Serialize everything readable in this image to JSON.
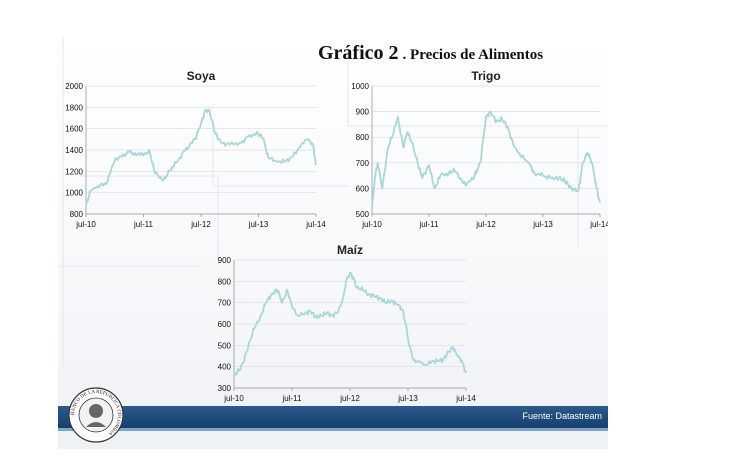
{
  "title": {
    "main": "Gráfico 2",
    "sub": ". Precios de Alimentos"
  },
  "source": "Fuente: Datastream",
  "logo_text": "BANCO DE LA REPUBLICA COLOMBIA",
  "colors": {
    "series": "#a9d6da",
    "footer": "#1d4a7c",
    "grid": "#d9dde2"
  },
  "chart_data": [
    {
      "type": "line",
      "title": "Soya",
      "xlabel": "",
      "ylabel": "",
      "x_ticks": [
        "jul-10",
        "jul-11",
        "jul-12",
        "jul-13",
        "jul-14"
      ],
      "x_range": [
        2010.5,
        2014.5
      ],
      "ylim": [
        800,
        2000
      ],
      "y_ticks": [
        800,
        1000,
        1200,
        1400,
        1600,
        1800,
        2000
      ],
      "grid": "horizontal",
      "series": [
        {
          "values": [
            [
              2010.5,
              880
            ],
            [
              2010.58,
              1020
            ],
            [
              2010.7,
              1060
            ],
            [
              2010.85,
              1080
            ],
            [
              2011.0,
              1300
            ],
            [
              2011.1,
              1340
            ],
            [
              2011.25,
              1380
            ],
            [
              2011.4,
              1360
            ],
            [
              2011.55,
              1370
            ],
            [
              2011.6,
              1400
            ],
            [
              2011.7,
              1180
            ],
            [
              2011.85,
              1120
            ],
            [
              2011.95,
              1200
            ],
            [
              2012.1,
              1300
            ],
            [
              2012.25,
              1420
            ],
            [
              2012.4,
              1500
            ],
            [
              2012.5,
              1650
            ],
            [
              2012.58,
              1780
            ],
            [
              2012.65,
              1760
            ],
            [
              2012.75,
              1550
            ],
            [
              2012.85,
              1470
            ],
            [
              2013.0,
              1450
            ],
            [
              2013.2,
              1470
            ],
            [
              2013.35,
              1540
            ],
            [
              2013.5,
              1550
            ],
            [
              2013.58,
              1510
            ],
            [
              2013.67,
              1330
            ],
            [
              2013.8,
              1300
            ],
            [
              2013.95,
              1290
            ],
            [
              2014.1,
              1340
            ],
            [
              2014.25,
              1460
            ],
            [
              2014.35,
              1500
            ],
            [
              2014.45,
              1450
            ],
            [
              2014.5,
              1260
            ]
          ]
        }
      ]
    },
    {
      "type": "line",
      "title": "Trigo",
      "xlabel": "",
      "ylabel": "",
      "x_ticks": [
        "jul-10",
        "jul-11",
        "jul-12",
        "jul-13",
        "jul-14"
      ],
      "x_range": [
        2010.5,
        2014.5
      ],
      "ylim": [
        500,
        1000
      ],
      "y_ticks": [
        500,
        600,
        700,
        800,
        900,
        1000
      ],
      "grid": "horizontal",
      "series": [
        {
          "values": [
            [
              2010.5,
              520
            ],
            [
              2010.55,
              640
            ],
            [
              2010.6,
              700
            ],
            [
              2010.68,
              600
            ],
            [
              2010.78,
              760
            ],
            [
              2010.88,
              820
            ],
            [
              2010.95,
              880
            ],
            [
              2011.05,
              760
            ],
            [
              2011.12,
              820
            ],
            [
              2011.2,
              780
            ],
            [
              2011.3,
              700
            ],
            [
              2011.38,
              640
            ],
            [
              2011.5,
              690
            ],
            [
              2011.6,
              600
            ],
            [
              2011.7,
              650
            ],
            [
              2011.85,
              660
            ],
            [
              2011.95,
              670
            ],
            [
              2012.05,
              640
            ],
            [
              2012.15,
              610
            ],
            [
              2012.3,
              650
            ],
            [
              2012.4,
              700
            ],
            [
              2012.5,
              880
            ],
            [
              2012.58,
              900
            ],
            [
              2012.68,
              860
            ],
            [
              2012.78,
              870
            ],
            [
              2012.88,
              840
            ],
            [
              2012.98,
              770
            ],
            [
              2013.1,
              730
            ],
            [
              2013.25,
              700
            ],
            [
              2013.35,
              660
            ],
            [
              2013.5,
              650
            ],
            [
              2013.65,
              640
            ],
            [
              2013.78,
              640
            ],
            [
              2013.88,
              630
            ],
            [
              2014.0,
              600
            ],
            [
              2014.12,
              590
            ],
            [
              2014.2,
              700
            ],
            [
              2014.28,
              740
            ],
            [
              2014.36,
              700
            ],
            [
              2014.44,
              600
            ],
            [
              2014.5,
              545
            ]
          ]
        }
      ]
    },
    {
      "type": "line",
      "title": "Maíz",
      "xlabel": "",
      "ylabel": "",
      "x_ticks": [
        "jul-10",
        "jul-11",
        "jul-12",
        "jul-13",
        "jul-14"
      ],
      "x_range": [
        2010.5,
        2014.5
      ],
      "ylim": [
        300,
        900
      ],
      "y_ticks": [
        300,
        400,
        500,
        600,
        700,
        800,
        900
      ],
      "grid": "horizontal",
      "series": [
        {
          "values": [
            [
              2010.5,
              360
            ],
            [
              2010.58,
              380
            ],
            [
              2010.66,
              420
            ],
            [
              2010.75,
              500
            ],
            [
              2010.85,
              580
            ],
            [
              2010.95,
              630
            ],
            [
              2011.05,
              700
            ],
            [
              2011.15,
              740
            ],
            [
              2011.25,
              760
            ],
            [
              2011.33,
              700
            ],
            [
              2011.42,
              760
            ],
            [
              2011.5,
              680
            ],
            [
              2011.6,
              640
            ],
            [
              2011.72,
              650
            ],
            [
              2011.82,
              660
            ],
            [
              2011.92,
              630
            ],
            [
              2012.0,
              640
            ],
            [
              2012.1,
              650
            ],
            [
              2012.2,
              640
            ],
            [
              2012.3,
              660
            ],
            [
              2012.38,
              720
            ],
            [
              2012.44,
              810
            ],
            [
              2012.5,
              840
            ],
            [
              2012.55,
              820
            ],
            [
              2012.62,
              770
            ],
            [
              2012.72,
              760
            ],
            [
              2012.82,
              740
            ],
            [
              2012.92,
              730
            ],
            [
              2013.02,
              720
            ],
            [
              2013.12,
              700
            ],
            [
              2013.22,
              710
            ],
            [
              2013.32,
              690
            ],
            [
              2013.4,
              670
            ],
            [
              2013.46,
              600
            ],
            [
              2013.52,
              500
            ],
            [
              2013.6,
              430
            ],
            [
              2013.7,
              420
            ],
            [
              2013.8,
              410
            ],
            [
              2013.9,
              420
            ],
            [
              2014.0,
              430
            ],
            [
              2014.1,
              430
            ],
            [
              2014.2,
              470
            ],
            [
              2014.28,
              490
            ],
            [
              2014.35,
              450
            ],
            [
              2014.42,
              430
            ],
            [
              2014.5,
              370
            ]
          ]
        }
      ]
    }
  ]
}
